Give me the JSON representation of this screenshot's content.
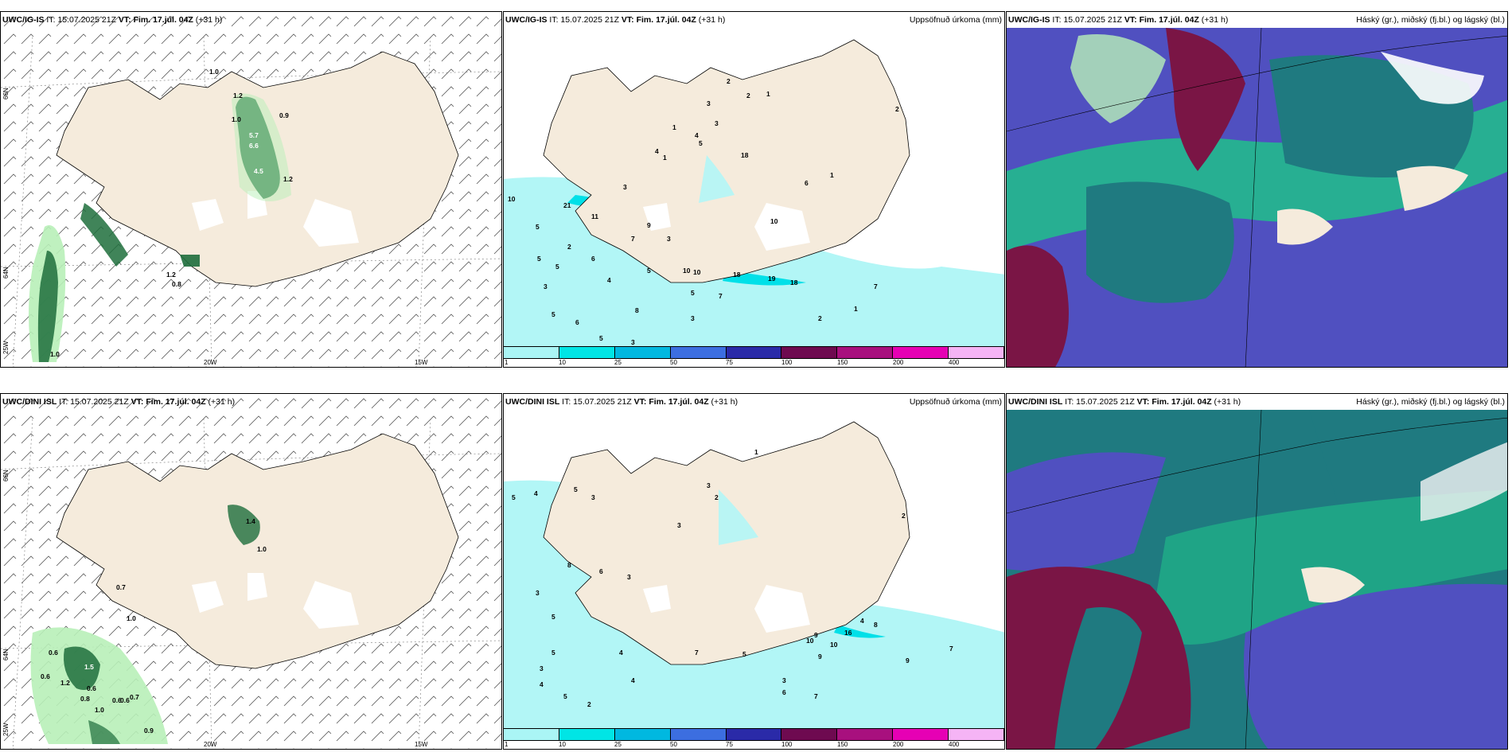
{
  "top": {
    "model": "UWC/IG-IS",
    "it": "IT: 15.07.2025 21Z",
    "vt_label": "VT:",
    "vt": "Fim. 17.júl. 04Z",
    "lead": "(+31 h)"
  },
  "bottom": {
    "model": "UWC/DINI ISL",
    "it": "IT: 15.07.2025 21Z",
    "vt_label": "VT:",
    "vt": "Fim. 17.júl. 04Z",
    "lead": "(+31 h)"
  },
  "titles": {
    "precip": "Uppsöfnuð úrkoma (mm)",
    "cloud": "Háský (gr.), miðský (fj.bl.) og lágský (bl.)"
  },
  "axes": {
    "lat66": "66N",
    "lat64": "64N",
    "lon25": "25W",
    "lon20": "20W",
    "lon15": "15W"
  },
  "legend": {
    "colors": [
      "#aaf5f5",
      "#00e5e5",
      "#00b8e0",
      "#3c6ee0",
      "#2a2aa8",
      "#6e0a50",
      "#a8107e",
      "#e600b4",
      "#f5b4f5"
    ],
    "ticks": [
      "1",
      "10",
      "25",
      "50",
      "75",
      "100",
      "150",
      "200",
      "400"
    ]
  },
  "labels": {
    "tl": [
      "1.0",
      "1.2",
      "5.7",
      "6.6",
      "1.0",
      "0.9",
      "4.5",
      "1.2",
      "1.2",
      "0.8",
      "1.0"
    ],
    "bl": [
      "1.4",
      "1.0",
      "0.7",
      "1.0",
      "0.6",
      "1.5",
      "0.6",
      "1.2",
      "0.6",
      "0.8",
      "0.6",
      "1.0",
      "0.6",
      "0.7",
      "0.9"
    ],
    "tm": [
      "2",
      "2",
      "1",
      "3",
      "3",
      "1",
      "4",
      "5",
      "4",
      "1",
      "3",
      "18",
      "1",
      "6",
      "2",
      "10",
      "21",
      "11",
      "9",
      "7",
      "3",
      "5",
      "2",
      "10",
      "6",
      "5",
      "5",
      "5",
      "4",
      "3",
      "10",
      "10",
      "18",
      "19",
      "18",
      "5",
      "7",
      "5",
      "6",
      "8",
      "3",
      "5",
      "2",
      "1",
      "7",
      "3"
    ],
    "bm": [
      "1",
      "3",
      "2",
      "5",
      "4",
      "5",
      "3",
      "3",
      "2",
      "8",
      "6",
      "3",
      "3",
      "5",
      "9",
      "16",
      "4",
      "8",
      "5",
      "4",
      "9",
      "10",
      "10",
      "9",
      "7",
      "7",
      "5",
      "3",
      "4",
      "4",
      "5",
      "2",
      "6",
      "3",
      "7"
    ]
  },
  "colors": {
    "land": "#f5ebdc",
    "precip_light": "#b2f6f6",
    "precip_mid": "#00e0e8",
    "green_light": "#b8f0b8",
    "green_dark": "#1e6e3c",
    "cloud_blue": "#5050c0",
    "cloud_teal": "#1f7a80",
    "cloud_wine": "#7a1545",
    "cloud_green": "#20c08a"
  }
}
